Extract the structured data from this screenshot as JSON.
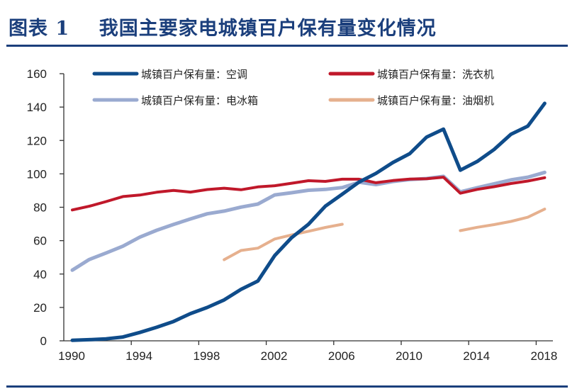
{
  "figure_title": "图表 1    我国主要家电城镇百户保有量变化情况",
  "chart_data": {
    "type": "line",
    "title": "",
    "xlabel": "",
    "ylabel": "",
    "xlim": [
      1990,
      2018
    ],
    "ylim": [
      0,
      160
    ],
    "x_ticks": [
      "1990",
      "1994",
      "1998",
      "2002",
      "2006",
      "2010",
      "2014",
      "2018"
    ],
    "y_ticks": [
      "0",
      "20",
      "40",
      "60",
      "80",
      "100",
      "120",
      "140",
      "160"
    ],
    "grid": false,
    "legend_position": "top",
    "series": [
      {
        "name": "城镇百户保有量：空调",
        "color": "#0f4c8a",
        "x": [
          1990,
          1991,
          1992,
          1993,
          1994,
          1995,
          1996,
          1997,
          1998,
          1999,
          2000,
          2001,
          2002,
          2003,
          2004,
          2005,
          2006,
          2007,
          2008,
          2009,
          2010,
          2011,
          2012,
          2013,
          2014,
          2015,
          2016,
          2017,
          2018
        ],
        "values": [
          0.3,
          0.7,
          1.2,
          2.3,
          5.0,
          8.1,
          11.6,
          16.3,
          20.0,
          24.5,
          30.8,
          35.8,
          51.1,
          61.8,
          69.8,
          80.7,
          87.8,
          95.1,
          100.3,
          106.8,
          112.1,
          122.0,
          126.8,
          102.2,
          107.4,
          114.6,
          123.7,
          128.6,
          142.2
        ]
      },
      {
        "name": "城镇百户保有量：洗衣机",
        "color": "#c0182a",
        "x": [
          1990,
          1991,
          1992,
          1993,
          1994,
          1995,
          1996,
          1997,
          1998,
          1999,
          2000,
          2001,
          2002,
          2003,
          2004,
          2005,
          2006,
          2007,
          2008,
          2009,
          2010,
          2011,
          2012,
          2013,
          2014,
          2015,
          2016,
          2017,
          2018
        ],
        "values": [
          78.4,
          80.6,
          83.4,
          86.4,
          87.3,
          89.0,
          90.1,
          89.1,
          90.6,
          91.4,
          90.5,
          92.2,
          92.9,
          94.4,
          95.9,
          95.5,
          96.8,
          96.8,
          94.7,
          96.0,
          96.9,
          97.1,
          98.0,
          88.4,
          90.7,
          92.3,
          94.2,
          95.7,
          97.7
        ]
      },
      {
        "name": "城镇百户保有量：电冰箱",
        "color": "#9aaad0",
        "x": [
          1990,
          1991,
          1992,
          1993,
          1994,
          1995,
          1996,
          1997,
          1998,
          1999,
          2000,
          2001,
          2002,
          2003,
          2004,
          2005,
          2006,
          2007,
          2008,
          2009,
          2010,
          2011,
          2012,
          2013,
          2014,
          2015,
          2016,
          2017,
          2018
        ],
        "values": [
          42.3,
          48.7,
          52.6,
          56.7,
          62.1,
          66.2,
          69.7,
          73.0,
          76.1,
          77.7,
          80.1,
          81.9,
          87.4,
          88.7,
          90.2,
          90.7,
          91.8,
          95.0,
          93.6,
          95.4,
          96.6,
          97.2,
          98.5,
          89.2,
          91.7,
          94.0,
          96.4,
          98.0,
          100.9
        ]
      },
      {
        "name": "城镇百户保有量：油烟机",
        "color": "#e6b08e",
        "x": [
          1999,
          2000,
          2001,
          2002,
          2003,
          2004,
          2005,
          2006,
          null,
          2013,
          2014,
          2015,
          2016,
          2017,
          2018
        ],
        "values": [
          48.6,
          54.1,
          55.5,
          61.0,
          63.4,
          65.6,
          67.9,
          69.8,
          null,
          66.0,
          68.0,
          69.6,
          71.5,
          74.0,
          78.9
        ]
      }
    ]
  }
}
